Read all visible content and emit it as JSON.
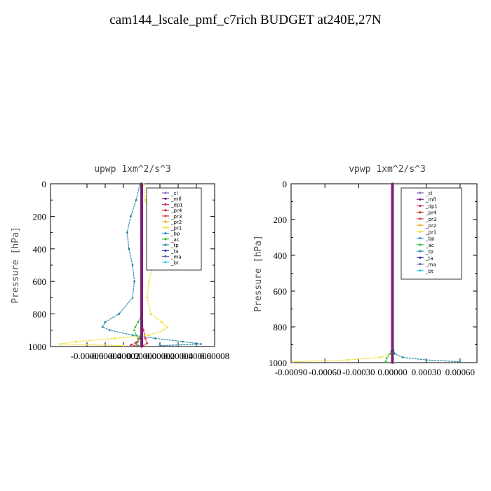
{
  "title": "cam144_lscale_pmf_c7rich  BUDGET at240E,27N",
  "legend_entries": [
    "_cl",
    "_mfl",
    "_dp1",
    "_pr4",
    "_pr3",
    "_pr2",
    "_pr1",
    "_bp",
    "_ac",
    "_tp",
    "_ta",
    "_ma",
    "_bt"
  ],
  "series_colors": {
    "_cl": "#8a6fc9",
    "_mfl": "#7a1f7a",
    "_dp1": "#cc2a5e",
    "_pr4": "#d03030",
    "_pr3": "#e04040",
    "_pr2": "#f0b020",
    "_pr1": "#f2e030",
    "_bp": "#2a9ad0",
    "_ac": "#30c030",
    "_tp": "#2a8ab0",
    "_ta": "#2030c0",
    "_ma": "#6060a0",
    "_bt": "#30d0e0"
  },
  "chart_data": [
    {
      "type": "line",
      "subtitle": "upwp   1xm^2/s^3",
      "ylabel": "Pressure [hPa]",
      "ylim": [
        1000,
        0
      ],
      "y_ticks": [
        "0",
        "200",
        "400",
        "600",
        "800",
        "1000"
      ],
      "xlim": [
        -0.0001,
        8e-05
      ],
      "x_tick_labels": [
        "-0.00006",
        "-0.00004",
        "-0.00002",
        "0.00000",
        "0.00002",
        "0.00004",
        "0.00006",
        "0.00008"
      ],
      "x_tick_values": [
        -6e-05,
        -4e-05,
        -2e-05,
        0.0,
        2e-05,
        4e-05,
        6e-05,
        8e-05
      ],
      "legend_position": "top-right",
      "series": [
        {
          "name": "_pr1",
          "p": [
            0,
            100,
            200,
            300,
            400,
            500,
            600,
            700,
            800,
            850,
            880,
            900,
            930,
            950,
            970,
            985,
            995
          ],
          "v": [
            2e-06,
            4e-06,
            8e-06,
            1.2e-05,
            1.4e-05,
            1.2e-05,
            8e-06,
            6e-06,
            1e-05,
            2.2e-05,
            2.8e-05,
            2.4e-05,
            8e-06,
            -3e-05,
            -7.2e-05,
            -9e-05,
            -2e-05
          ]
        },
        {
          "name": "_tp",
          "p": [
            0,
            100,
            200,
            300,
            400,
            500,
            600,
            700,
            800,
            850,
            880,
            900,
            930,
            950,
            970,
            985,
            995
          ],
          "v": [
            -2e-06,
            -6e-06,
            -1.2e-05,
            -1.6e-05,
            -1.4e-05,
            -1e-05,
            -8e-06,
            -1e-05,
            -2.5e-05,
            -4e-05,
            -4.3e-05,
            -3.5e-05,
            -1e-05,
            1.5e-05,
            4.5e-05,
            6.5e-05,
            2e-05
          ]
        },
        {
          "name": "_ac",
          "p": [
            800,
            850,
            880,
            900,
            930,
            950,
            970,
            985,
            995
          ],
          "v": [
            0,
            -4e-06,
            -7e-06,
            -8e-06,
            -6e-06,
            -4e-06,
            -4e-06,
            -6e-06,
            -3e-06
          ]
        },
        {
          "name": "_pr4",
          "p": [
            850,
            900,
            950,
            980,
            995
          ],
          "v": [
            0,
            2e-06,
            4e-06,
            6e-06,
            2e-06
          ]
        },
        {
          "name": "_dp1",
          "p": [
            900,
            950,
            975,
            990,
            998
          ],
          "v": [
            0,
            -2e-06,
            -6e-06,
            -1.2e-05,
            -4e-06
          ]
        },
        {
          "name": "_mfl",
          "p": [
            0,
            200,
            400,
            600,
            800,
            1000
          ],
          "v": [
            0,
            0,
            0,
            0,
            0,
            0
          ]
        }
      ]
    },
    {
      "type": "line",
      "subtitle": "vpwp   1xm^2/s^3",
      "ylabel": "Pressure [hPa]",
      "ylim": [
        1000,
        0
      ],
      "y_ticks": [
        "0",
        "200",
        "400",
        "600",
        "800",
        "1000"
      ],
      "xlim": [
        -0.0009,
        0.00075
      ],
      "x_tick_labels": [
        "-0.00090",
        "-0.00060",
        "-0.00030",
        "0.00000",
        "0.00030",
        "0.00060"
      ],
      "x_tick_values": [
        -0.0009,
        -0.0006,
        -0.0003,
        0.0,
        0.0003,
        0.0006
      ],
      "legend_position": "top-right",
      "series": [
        {
          "name": "_pr1",
          "p": [
            0,
            500,
            900,
            950,
            970,
            985,
            995
          ],
          "v": [
            0,
            0,
            -2e-06,
            -2e-05,
            -0.0001,
            -0.0004,
            -0.00088
          ]
        },
        {
          "name": "_tp",
          "p": [
            0,
            500,
            900,
            950,
            970,
            985,
            995
          ],
          "v": [
            0,
            0,
            2e-06,
            2e-05,
            9e-05,
            0.0003,
            0.0006
          ]
        },
        {
          "name": "_ac",
          "p": [
            900,
            950,
            975,
            995
          ],
          "v": [
            0,
            -2e-05,
            -5e-05,
            -6e-05
          ]
        },
        {
          "name": "_mfl",
          "p": [
            0,
            200,
            400,
            600,
            800,
            1000
          ],
          "v": [
            0,
            0,
            0,
            0,
            0,
            0
          ]
        }
      ]
    }
  ]
}
